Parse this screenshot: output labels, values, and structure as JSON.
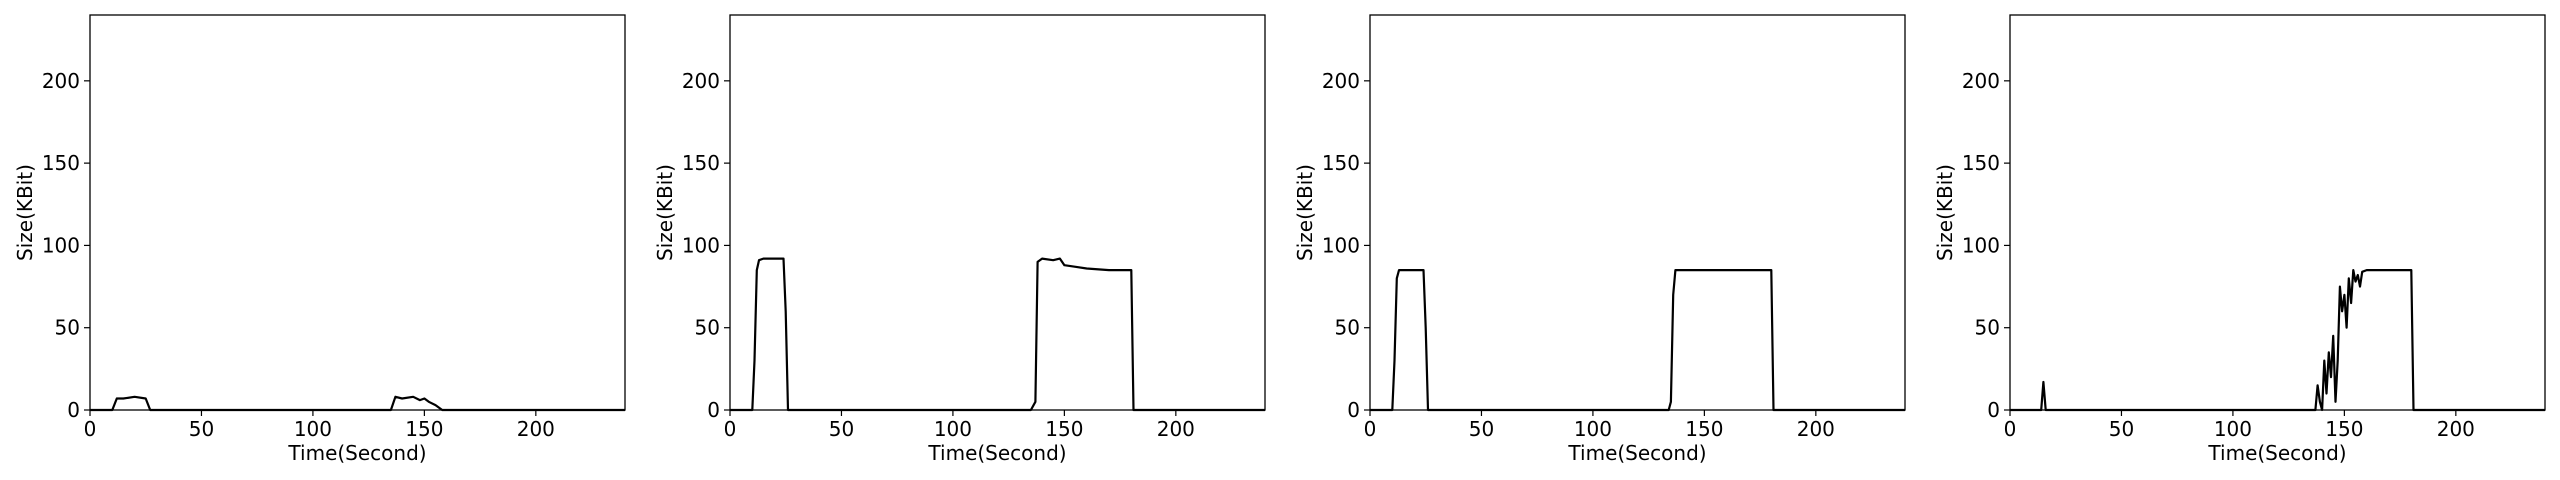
{
  "colors": {
    "line": "#000000",
    "axis": "#000000",
    "background": "#ffffff"
  },
  "chart_data": [
    {
      "type": "line",
      "xlabel": "Time(Second)",
      "ylabel": "Size(KBit)",
      "xlim": [
        0,
        240
      ],
      "ylim": [
        0,
        240
      ],
      "xticks": [
        0,
        50,
        100,
        150,
        200
      ],
      "yticks": [
        0,
        50,
        100,
        150,
        200
      ],
      "grid": false,
      "series": [
        {
          "x": [
            0,
            10,
            12,
            15,
            20,
            25,
            27,
            30,
            60,
            100,
            135,
            137,
            140,
            145,
            148,
            150,
            152,
            155,
            158,
            160,
            200,
            240
          ],
          "y": [
            0,
            0,
            7,
            7,
            8,
            7,
            0,
            0,
            0,
            0,
            0,
            8,
            7,
            8,
            6,
            7,
            5,
            3,
            0,
            0,
            0,
            0
          ]
        }
      ]
    },
    {
      "type": "line",
      "xlabel": "Time(Second)",
      "ylabel": "Size(KBit)",
      "xlim": [
        0,
        240
      ],
      "ylim": [
        0,
        240
      ],
      "xticks": [
        0,
        50,
        100,
        150,
        200
      ],
      "yticks": [
        0,
        50,
        100,
        150,
        200
      ],
      "grid": false,
      "series": [
        {
          "x": [
            0,
            10,
            11,
            12,
            13,
            15,
            20,
            24,
            25,
            26,
            27,
            60,
            100,
            135,
            137,
            138,
            140,
            145,
            148,
            150,
            155,
            160,
            170,
            180,
            181,
            182,
            200,
            220,
            240
          ],
          "y": [
            0,
            0,
            30,
            85,
            91,
            92,
            92,
            92,
            60,
            0,
            0,
            0,
            0,
            0,
            5,
            90,
            92,
            91,
            92,
            88,
            87,
            86,
            85,
            85,
            0,
            0,
            0,
            0,
            0
          ]
        }
      ]
    },
    {
      "type": "line",
      "xlabel": "Time(Second)",
      "ylabel": "Size(KBit)",
      "xlim": [
        0,
        240
      ],
      "ylim": [
        0,
        240
      ],
      "xticks": [
        0,
        50,
        100,
        150,
        200
      ],
      "yticks": [
        0,
        50,
        100,
        150,
        200
      ],
      "grid": false,
      "series": [
        {
          "x": [
            0,
            10,
            11,
            12,
            13,
            15,
            20,
            24,
            25,
            26,
            27,
            60,
            100,
            134,
            135,
            136,
            137,
            140,
            150,
            160,
            170,
            180,
            181,
            182,
            200,
            220,
            240
          ],
          "y": [
            0,
            0,
            30,
            80,
            85,
            85,
            85,
            85,
            50,
            0,
            0,
            0,
            0,
            0,
            5,
            70,
            85,
            85,
            85,
            85,
            85,
            85,
            0,
            0,
            0,
            0,
            0
          ]
        }
      ]
    },
    {
      "type": "line",
      "xlabel": "Time(Second)",
      "ylabel": "Size(KBit)",
      "xlim": [
        0,
        240
      ],
      "ylim": [
        0,
        240
      ],
      "xticks": [
        0,
        50,
        100,
        150,
        200
      ],
      "yticks": [
        0,
        50,
        100,
        150,
        200
      ],
      "grid": false,
      "series": [
        {
          "x": [
            0,
            14,
            15,
            16,
            17,
            60,
            100,
            137,
            138,
            139,
            140,
            141,
            142,
            143,
            144,
            145,
            146,
            147,
            148,
            149,
            150,
            151,
            152,
            153,
            154,
            155,
            156,
            157,
            158,
            160,
            165,
            170,
            175,
            180,
            181,
            182,
            200,
            220,
            240
          ],
          "y": [
            0,
            0,
            17,
            0,
            0,
            0,
            0,
            0,
            15,
            5,
            0,
            30,
            10,
            35,
            20,
            45,
            5,
            30,
            75,
            60,
            70,
            50,
            80,
            65,
            85,
            78,
            82,
            75,
            84,
            85,
            85,
            85,
            85,
            85,
            0,
            0,
            0,
            0,
            0
          ]
        }
      ]
    }
  ]
}
